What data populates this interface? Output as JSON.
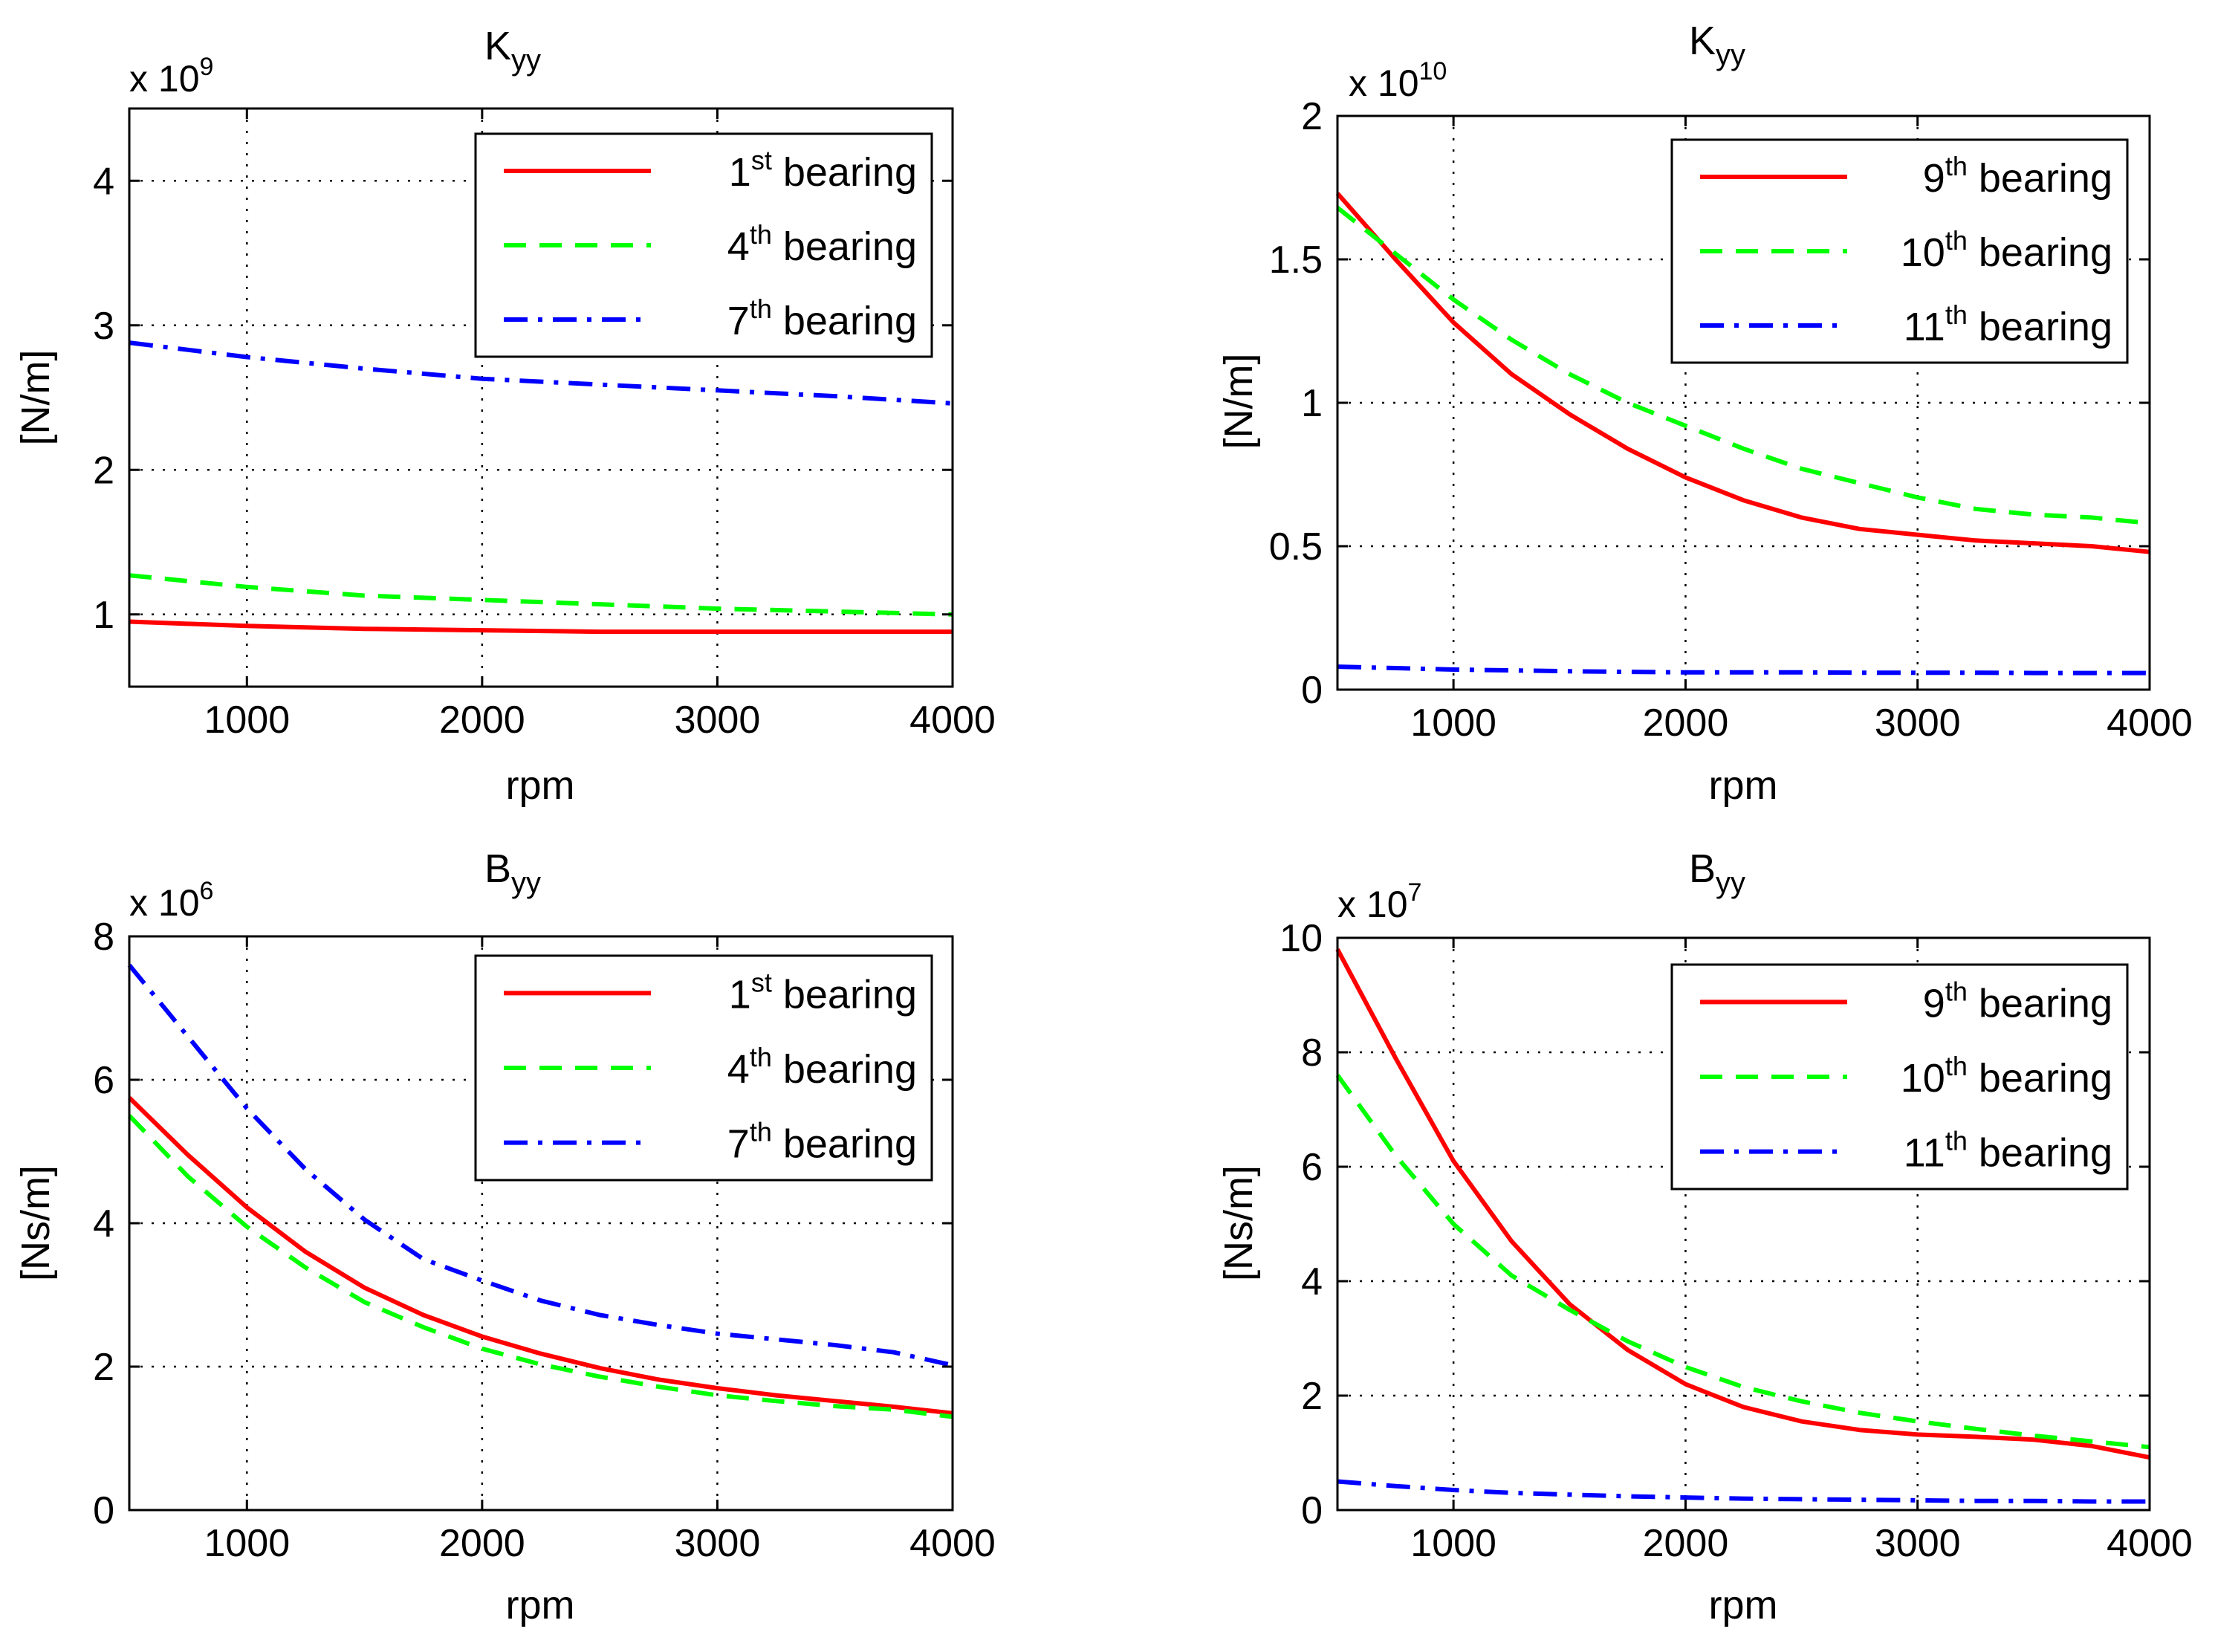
{
  "figure": {
    "panels": [
      {
        "id": "kyy-left",
        "title_main": "K",
        "title_sub": "yy",
        "multiplier_base": "x 10",
        "multiplier_exp": "9"
      },
      {
        "id": "kyy-right",
        "title_main": "K",
        "title_sub": "yy",
        "multiplier_base": "x 10",
        "multiplier_exp": "10"
      },
      {
        "id": "byy-left",
        "title_main": "B",
        "title_sub": "yy",
        "multiplier_base": "x 10",
        "multiplier_exp": "6"
      },
      {
        "id": "byy-right",
        "title_main": "B",
        "title_sub": "yy",
        "multiplier_base": "x 10",
        "multiplier_exp": "7"
      }
    ]
  },
  "chart_data": [
    {
      "type": "line",
      "title": "K_yy",
      "xlabel": "rpm",
      "ylabel": "[N/m]",
      "y_multiplier": "x 10^9",
      "xlim": [
        500,
        4000
      ],
      "ylim": [
        0.5,
        4.5
      ],
      "xticks": [
        1000,
        2000,
        3000,
        4000
      ],
      "yticks": [
        1,
        2,
        3,
        4
      ],
      "grid": true,
      "legend_position": "top-right",
      "x": [
        500,
        1000,
        1500,
        2000,
        2500,
        3000,
        3500,
        4000
      ],
      "series": [
        {
          "name_num": "1",
          "name_sup": "st",
          "name_text": "bearing",
          "color": "#ff0000",
          "dash": "solid",
          "values": [
            0.95,
            0.92,
            0.9,
            0.89,
            0.88,
            0.88,
            0.88,
            0.88
          ]
        },
        {
          "name_num": "4",
          "name_sup": "th",
          "name_text": "bearing",
          "color": "#00ff00",
          "dash": "dashed",
          "values": [
            1.27,
            1.19,
            1.13,
            1.1,
            1.07,
            1.04,
            1.02,
            1.0
          ]
        },
        {
          "name_num": "7",
          "name_sup": "th",
          "name_text": "bearing",
          "color": "#0000ff",
          "dash": "dashdot",
          "values": [
            2.88,
            2.78,
            2.7,
            2.63,
            2.59,
            2.55,
            2.51,
            2.46
          ]
        }
      ]
    },
    {
      "type": "line",
      "title": "K_yy",
      "xlabel": "rpm",
      "ylabel": "[N/m]",
      "y_multiplier": "x 10^10",
      "xlim": [
        500,
        4000
      ],
      "ylim": [
        0,
        2
      ],
      "xticks": [
        1000,
        2000,
        3000,
        4000
      ],
      "yticks": [
        0,
        0.5,
        1,
        1.5,
        2
      ],
      "grid": true,
      "legend_position": "top-right",
      "x": [
        500,
        750,
        1000,
        1250,
        1500,
        1750,
        2000,
        2250,
        2500,
        2750,
        3000,
        3250,
        3500,
        3750,
        4000
      ],
      "series": [
        {
          "name_num": "9",
          "name_sup": "th",
          "name_text": "bearing",
          "color": "#ff0000",
          "dash": "solid",
          "values": [
            1.73,
            1.5,
            1.28,
            1.1,
            0.96,
            0.84,
            0.74,
            0.66,
            0.6,
            0.56,
            0.54,
            0.52,
            0.51,
            0.5,
            0.48
          ]
        },
        {
          "name_num": "10",
          "name_sup": "th",
          "name_text": "bearing",
          "color": "#00ff00",
          "dash": "dashed",
          "values": [
            1.68,
            1.52,
            1.36,
            1.22,
            1.1,
            1.0,
            0.92,
            0.84,
            0.77,
            0.72,
            0.67,
            0.63,
            0.61,
            0.6,
            0.58
          ]
        },
        {
          "name_num": "11",
          "name_sup": "th",
          "name_text": "bearing",
          "color": "#0000ff",
          "dash": "dashdot",
          "values": [
            0.08,
            0.075,
            0.07,
            0.067,
            0.064,
            0.062,
            0.06,
            0.06,
            0.06,
            0.059,
            0.059,
            0.059,
            0.058,
            0.058,
            0.058
          ]
        }
      ]
    },
    {
      "type": "line",
      "title": "B_yy",
      "xlabel": "rpm",
      "ylabel": "[Ns/m]",
      "y_multiplier": "x 10^6",
      "xlim": [
        500,
        4000
      ],
      "ylim": [
        0,
        8
      ],
      "xticks": [
        1000,
        2000,
        3000,
        4000
      ],
      "yticks": [
        0,
        2,
        4,
        6,
        8
      ],
      "grid": true,
      "legend_position": "top-right",
      "x": [
        500,
        750,
        1000,
        1250,
        1500,
        1750,
        2000,
        2250,
        2500,
        2750,
        3000,
        3250,
        3500,
        3750,
        4000
      ],
      "series": [
        {
          "name_num": "1",
          "name_sup": "st",
          "name_text": "bearing",
          "color": "#ff0000",
          "dash": "solid",
          "values": [
            5.75,
            4.95,
            4.22,
            3.6,
            3.1,
            2.72,
            2.42,
            2.18,
            1.98,
            1.82,
            1.7,
            1.6,
            1.52,
            1.44,
            1.35
          ]
        },
        {
          "name_num": "4",
          "name_sup": "th",
          "name_text": "bearing",
          "color": "#00ff00",
          "dash": "dashed",
          "values": [
            5.5,
            4.65,
            3.95,
            3.38,
            2.9,
            2.55,
            2.25,
            2.03,
            1.86,
            1.72,
            1.6,
            1.52,
            1.45,
            1.4,
            1.3
          ]
        },
        {
          "name_num": "7",
          "name_sup": "th",
          "name_text": "bearing",
          "color": "#0000ff",
          "dash": "dashdot",
          "values": [
            7.6,
            6.6,
            5.6,
            4.75,
            4.05,
            3.5,
            3.2,
            2.92,
            2.72,
            2.58,
            2.46,
            2.38,
            2.3,
            2.2,
            2.02
          ]
        }
      ]
    },
    {
      "type": "line",
      "title": "B_yy",
      "xlabel": "rpm",
      "ylabel": "[Ns/m]",
      "y_multiplier": "x 10^7",
      "xlim": [
        500,
        4000
      ],
      "ylim": [
        0,
        10
      ],
      "xticks": [
        1000,
        2000,
        3000,
        4000
      ],
      "yticks": [
        0,
        2,
        4,
        6,
        8,
        10
      ],
      "grid": true,
      "legend_position": "top-right",
      "x": [
        500,
        750,
        1000,
        1250,
        1500,
        1750,
        2000,
        2250,
        2500,
        2750,
        3000,
        3250,
        3500,
        3750,
        4000
      ],
      "series": [
        {
          "name_num": "9",
          "name_sup": "th",
          "name_text": "bearing",
          "color": "#ff0000",
          "dash": "solid",
          "values": [
            9.8,
            7.9,
            6.1,
            4.7,
            3.6,
            2.8,
            2.2,
            1.8,
            1.55,
            1.4,
            1.32,
            1.28,
            1.23,
            1.12,
            0.92
          ]
        },
        {
          "name_num": "10",
          "name_sup": "th",
          "name_text": "bearing",
          "color": "#00ff00",
          "dash": "dashed",
          "values": [
            7.6,
            6.2,
            5.0,
            4.1,
            3.5,
            2.95,
            2.5,
            2.15,
            1.9,
            1.7,
            1.55,
            1.42,
            1.3,
            1.2,
            1.1
          ]
        },
        {
          "name_num": "11",
          "name_sup": "th",
          "name_text": "bearing",
          "color": "#0000ff",
          "dash": "dashdot",
          "values": [
            0.5,
            0.42,
            0.35,
            0.3,
            0.27,
            0.24,
            0.22,
            0.2,
            0.19,
            0.18,
            0.17,
            0.16,
            0.16,
            0.15,
            0.15
          ]
        }
      ]
    }
  ]
}
